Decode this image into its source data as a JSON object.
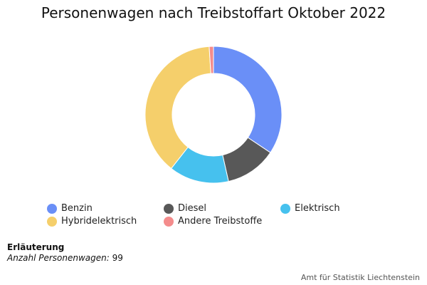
{
  "chart_data": {
    "type": "pie",
    "variant": "donut",
    "title": "Personenwagen nach Treibstoffart Oktober 2022",
    "categories": [
      "Benzin",
      "Diesel",
      "Elektrisch",
      "Hybridelektrisch",
      "Andere Treibstoffe"
    ],
    "values": [
      34,
      12,
      14,
      38,
      1
    ],
    "colors": [
      "#6a8ff7",
      "#585858",
      "#46c1ee",
      "#f5cf6b",
      "#f48c8c"
    ],
    "legend": "bottom"
  },
  "note": {
    "heading": "Erläuterung",
    "label": "Anzahl Personenwagen:",
    "value": "99"
  },
  "source": "Amt für Statistik Liechtenstein"
}
